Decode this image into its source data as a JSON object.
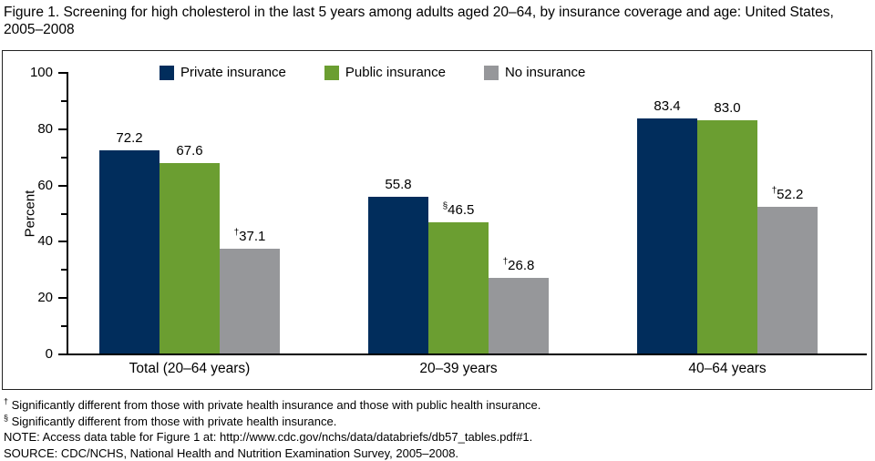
{
  "title": "Figure 1. Screening for high cholesterol in the last 5 years among adults aged 20–64, by insurance coverage and age: United States, 2005–2008",
  "chart_data": {
    "type": "bar",
    "title": "Figure 1. Screening for high cholesterol in the last 5 years among adults aged 20–64, by insurance coverage and age: United States, 2005–2008",
    "categories": [
      "Total (20–64 years)",
      "20–39 years",
      "40–64 years"
    ],
    "series": [
      {
        "name": "Private insurance",
        "color": "#012d5c",
        "values": [
          72.2,
          55.8,
          83.4
        ],
        "label_markers": [
          "",
          "",
          ""
        ]
      },
      {
        "name": "Public insurance",
        "color": "#6b9e31",
        "values": [
          67.6,
          46.5,
          83.0
        ],
        "label_markers": [
          "",
          "§",
          ""
        ]
      },
      {
        "name": "No insurance",
        "color": "#96979a",
        "values": [
          37.1,
          26.8,
          52.2
        ],
        "label_markers": [
          "†",
          "†",
          "†"
        ]
      }
    ],
    "xlabel": "",
    "ylabel": "Percent",
    "ylim": [
      0,
      100
    ],
    "y_major_tick_step": 20,
    "y_minor_tick_step": 10,
    "grid": false,
    "legend_position": "top-inside"
  },
  "footnotes": [
    {
      "marker": "†",
      "text": " Significantly different from those with private health insurance and those with public health insurance."
    },
    {
      "marker": "§",
      "text": " Significantly different from those with private health insurance."
    },
    {
      "marker": "",
      "text": "NOTE: Access data table for Figure 1 at: http://www.cdc.gov/nchs/data/databriefs/db57_tables.pdf#1."
    },
    {
      "marker": "",
      "text": "SOURCE: CDC/NCHS, National Health and Nutrition Examination Survey, 2005–2008."
    }
  ]
}
